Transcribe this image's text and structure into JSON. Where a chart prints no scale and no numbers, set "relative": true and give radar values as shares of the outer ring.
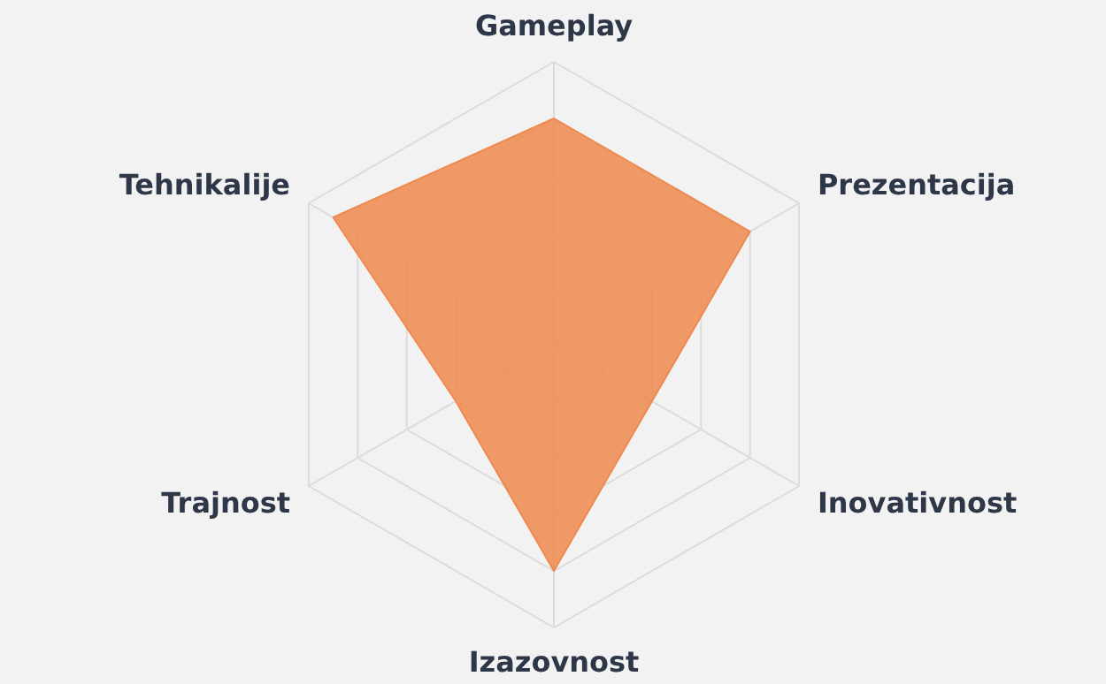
{
  "chart_data": {
    "type": "radar",
    "relative": true,
    "grid": true,
    "categories": [
      "Gameplay",
      "Prezentacija",
      "Inovativnost",
      "Izazovnost",
      "Trajnost",
      "Tehnikalije"
    ],
    "series": [
      {
        "color": "#ee8a4f",
        "values": [
          0.8,
          0.8,
          0.4,
          0.8,
          0.4,
          0.9
        ]
      }
    ]
  }
}
